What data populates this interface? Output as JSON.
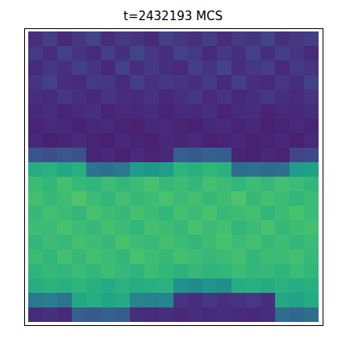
{
  "chart_data": {
    "type": "heatmap",
    "title": "t=2432193 MCS",
    "tick_labels": false,
    "color": "viridis",
    "zlim": [
      0,
      1
    ],
    "cells": [
      [
        0.14,
        0.18,
        0.12,
        0.16,
        0.2,
        0.13,
        0.17,
        0.15,
        0.12,
        0.19,
        0.16,
        0.14,
        0.18,
        0.13,
        0.17,
        0.15,
        0.2,
        0.14,
        0.16,
        0.18
      ],
      [
        0.17,
        0.13,
        0.19,
        0.15,
        0.12,
        0.18,
        0.14,
        0.2,
        0.16,
        0.13,
        0.19,
        0.17,
        0.12,
        0.16,
        0.14,
        0.19,
        0.13,
        0.18,
        0.15,
        0.12
      ],
      [
        0.12,
        0.16,
        0.14,
        0.18,
        0.15,
        0.11,
        0.19,
        0.13,
        0.17,
        0.14,
        0.12,
        0.18,
        0.15,
        0.2,
        0.13,
        0.16,
        0.18,
        0.12,
        0.17,
        0.15
      ],
      [
        0.15,
        0.19,
        0.13,
        0.12,
        0.17,
        0.16,
        0.12,
        0.18,
        0.14,
        0.16,
        0.15,
        0.13,
        0.17,
        0.12,
        0.18,
        0.14,
        0.12,
        0.16,
        0.13,
        0.19
      ],
      [
        0.13,
        0.12,
        0.16,
        0.14,
        0.11,
        0.15,
        0.13,
        0.12,
        0.15,
        0.11,
        0.14,
        0.16,
        0.12,
        0.15,
        0.11,
        0.13,
        0.16,
        0.14,
        0.12,
        0.15
      ],
      [
        0.11,
        0.13,
        0.1,
        0.12,
        0.14,
        0.1,
        0.12,
        0.11,
        0.13,
        0.1,
        0.12,
        0.11,
        0.14,
        0.1,
        0.12,
        0.13,
        0.1,
        0.12,
        0.11,
        0.13
      ],
      [
        0.1,
        0.12,
        0.11,
        0.09,
        0.11,
        0.12,
        0.1,
        0.09,
        0.11,
        0.12,
        0.1,
        0.09,
        0.11,
        0.12,
        0.1,
        0.11,
        0.09,
        0.1,
        0.12,
        0.1
      ],
      [
        0.11,
        0.09,
        0.1,
        0.12,
        0.1,
        0.09,
        0.11,
        0.1,
        0.09,
        0.11,
        0.1,
        0.12,
        0.09,
        0.1,
        0.11,
        0.09,
        0.1,
        0.11,
        0.09,
        0.12
      ],
      [
        0.26,
        0.24,
        0.27,
        0.25,
        0.1,
        0.11,
        0.09,
        0.12,
        0.1,
        0.11,
        0.3,
        0.28,
        0.31,
        0.29,
        0.1,
        0.09,
        0.11,
        0.1,
        0.2,
        0.22
      ],
      [
        0.62,
        0.64,
        0.6,
        0.63,
        0.38,
        0.36,
        0.4,
        0.55,
        0.53,
        0.56,
        0.65,
        0.63,
        0.66,
        0.64,
        0.35,
        0.37,
        0.34,
        0.36,
        0.55,
        0.57
      ],
      [
        0.68,
        0.66,
        0.7,
        0.67,
        0.65,
        0.69,
        0.66,
        0.68,
        0.71,
        0.67,
        0.69,
        0.66,
        0.7,
        0.68,
        0.66,
        0.69,
        0.67,
        0.7,
        0.68,
        0.66
      ],
      [
        0.7,
        0.67,
        0.69,
        0.72,
        0.68,
        0.66,
        0.7,
        0.67,
        0.69,
        0.71,
        0.68,
        0.7,
        0.67,
        0.69,
        0.72,
        0.67,
        0.7,
        0.68,
        0.66,
        0.69
      ],
      [
        0.67,
        0.7,
        0.68,
        0.66,
        0.71,
        0.69,
        0.67,
        0.7,
        0.68,
        0.66,
        0.7,
        0.68,
        0.71,
        0.67,
        0.69,
        0.7,
        0.66,
        0.69,
        0.71,
        0.68
      ],
      [
        0.69,
        0.68,
        0.71,
        0.69,
        0.67,
        0.7,
        0.68,
        0.66,
        0.7,
        0.69,
        0.67,
        0.71,
        0.68,
        0.7,
        0.66,
        0.68,
        0.71,
        0.67,
        0.69,
        0.7
      ],
      [
        0.66,
        0.69,
        0.67,
        0.7,
        0.69,
        0.67,
        0.71,
        0.69,
        0.67,
        0.7,
        0.68,
        0.66,
        0.69,
        0.71,
        0.68,
        0.7,
        0.67,
        0.69,
        0.66,
        0.68
      ],
      [
        0.68,
        0.66,
        0.7,
        0.67,
        0.7,
        0.68,
        0.66,
        0.71,
        0.69,
        0.67,
        0.7,
        0.69,
        0.67,
        0.68,
        0.7,
        0.66,
        0.69,
        0.68,
        0.7,
        0.67
      ],
      [
        0.65,
        0.67,
        0.66,
        0.68,
        0.66,
        0.69,
        0.67,
        0.65,
        0.68,
        0.66,
        0.64,
        0.67,
        0.65,
        0.66,
        0.68,
        0.66,
        0.67,
        0.65,
        0.68,
        0.66
      ],
      [
        0.62,
        0.64,
        0.63,
        0.65,
        0.63,
        0.61,
        0.64,
        0.62,
        0.63,
        0.64,
        0.5,
        0.48,
        0.52,
        0.49,
        0.62,
        0.63,
        0.61,
        0.64,
        0.62,
        0.63
      ],
      [
        0.4,
        0.42,
        0.38,
        0.6,
        0.62,
        0.59,
        0.61,
        0.45,
        0.44,
        0.46,
        0.15,
        0.13,
        0.16,
        0.14,
        0.15,
        0.17,
        0.14,
        0.6,
        0.58,
        0.61
      ],
      [
        0.12,
        0.14,
        0.11,
        0.3,
        0.28,
        0.31,
        0.29,
        0.13,
        0.12,
        0.14,
        0.11,
        0.13,
        0.12,
        0.14,
        0.12,
        0.11,
        0.13,
        0.35,
        0.33,
        0.36
      ]
    ]
  }
}
